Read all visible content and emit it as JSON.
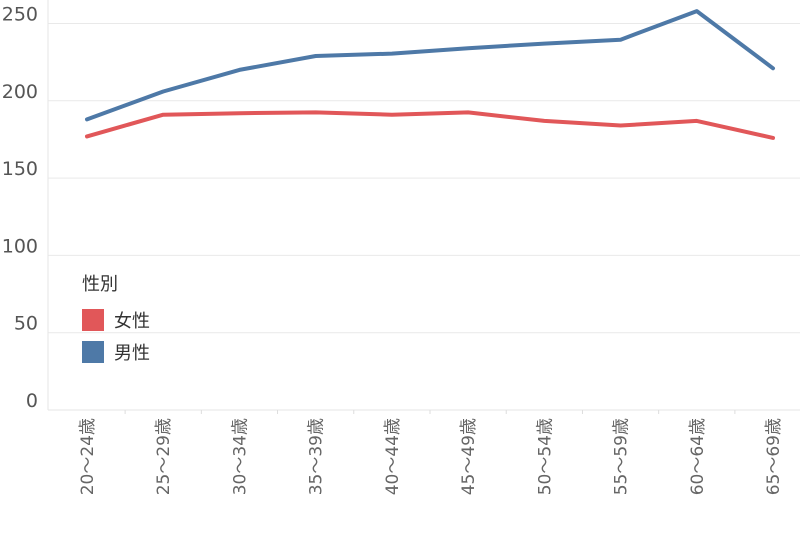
{
  "chart_data": {
    "type": "line",
    "categories": [
      "20〜24歳",
      "25〜29歳",
      "30〜34歳",
      "35〜39歳",
      "40〜44歳",
      "45〜49歳",
      "50〜54歳",
      "55〜59歳",
      "60〜64歳",
      "65〜69歳"
    ],
    "series": [
      {
        "name": "女性",
        "color": "#e15759",
        "values": [
          177,
          191,
          192,
          192.5,
          191,
          192.5,
          187,
          184,
          187,
          176
        ]
      },
      {
        "name": "男性",
        "color": "#4e79a7",
        "values": [
          188,
          206,
          220,
          229,
          230.5,
          234,
          237,
          239.5,
          258,
          221
        ]
      }
    ],
    "ylim": [
      0,
      260
    ],
    "yticks": [
      0,
      50,
      100,
      150,
      200,
      250
    ],
    "grid": true,
    "legend": {
      "title": "性別",
      "placement": "left-middle"
    }
  }
}
